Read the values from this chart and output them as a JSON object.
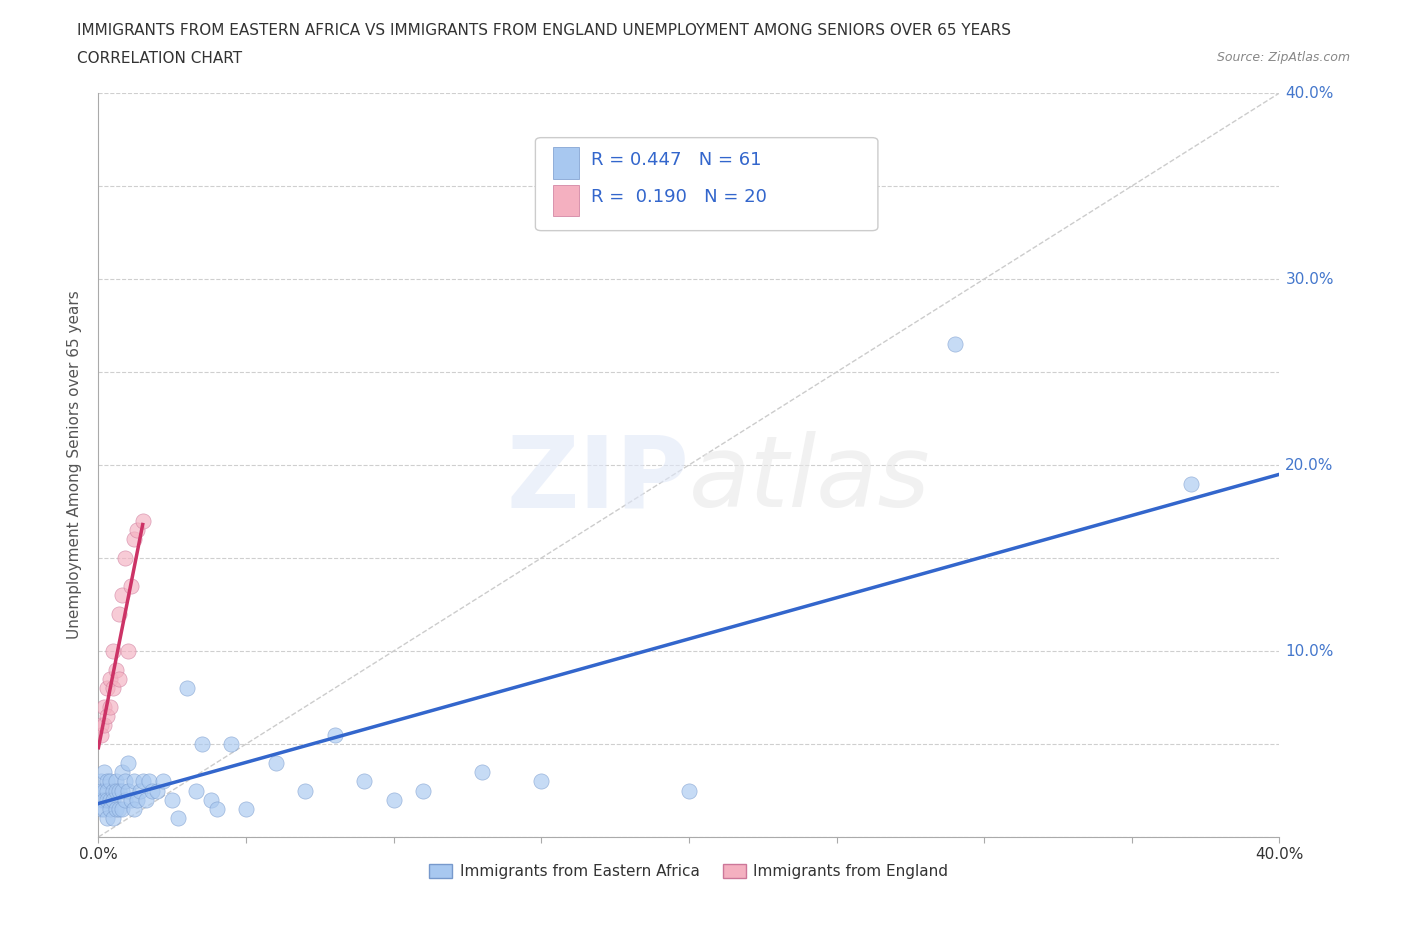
{
  "title_line1": "IMMIGRANTS FROM EASTERN AFRICA VS IMMIGRANTS FROM ENGLAND UNEMPLOYMENT AMONG SENIORS OVER 65 YEARS",
  "title_line2": "CORRELATION CHART",
  "source": "Source: ZipAtlas.com",
  "ylabel": "Unemployment Among Seniors over 65 years",
  "xlim": [
    0.0,
    0.4
  ],
  "ylim": [
    0.0,
    0.4
  ],
  "xticks": [
    0.0,
    0.05,
    0.1,
    0.15,
    0.2,
    0.25,
    0.3,
    0.35,
    0.4
  ],
  "yticks": [
    0.0,
    0.05,
    0.1,
    0.15,
    0.2,
    0.25,
    0.3,
    0.35,
    0.4
  ],
  "color_eastern_africa": "#a8c8f0",
  "color_england": "#f4b0c0",
  "line_color_eastern_africa": "#3366cc",
  "line_color_england": "#cc3366",
  "diag_line_color": "#cccccc",
  "R_eastern_africa": 0.447,
  "N_eastern_africa": 61,
  "R_england": 0.19,
  "N_england": 20,
  "legend_label_eastern_africa": "Immigrants from Eastern Africa",
  "legend_label_england": "Immigrants from England",
  "watermark_zip": "ZIP",
  "watermark_atlas": "atlas",
  "background_color": "#ffffff",
  "grid_color": "#bbbbbb",
  "right_tick_color": "#4477cc",
  "scatter_alpha": 0.65,
  "scatter_size": 120,
  "eastern_africa_x": [
    0.001,
    0.001,
    0.001,
    0.001,
    0.002,
    0.002,
    0.002,
    0.002,
    0.003,
    0.003,
    0.003,
    0.003,
    0.004,
    0.004,
    0.004,
    0.005,
    0.005,
    0.005,
    0.006,
    0.006,
    0.006,
    0.007,
    0.007,
    0.008,
    0.008,
    0.008,
    0.009,
    0.009,
    0.01,
    0.01,
    0.011,
    0.012,
    0.012,
    0.013,
    0.014,
    0.015,
    0.016,
    0.017,
    0.018,
    0.02,
    0.022,
    0.025,
    0.027,
    0.03,
    0.033,
    0.035,
    0.038,
    0.04,
    0.045,
    0.05,
    0.06,
    0.07,
    0.08,
    0.09,
    0.1,
    0.11,
    0.13,
    0.15,
    0.2,
    0.29,
    0.37
  ],
  "eastern_africa_y": [
    0.03,
    0.025,
    0.02,
    0.015,
    0.035,
    0.025,
    0.02,
    0.015,
    0.03,
    0.025,
    0.02,
    0.01,
    0.03,
    0.02,
    0.015,
    0.025,
    0.02,
    0.01,
    0.03,
    0.025,
    0.015,
    0.025,
    0.015,
    0.035,
    0.025,
    0.015,
    0.03,
    0.02,
    0.04,
    0.025,
    0.02,
    0.03,
    0.015,
    0.02,
    0.025,
    0.03,
    0.02,
    0.03,
    0.025,
    0.025,
    0.03,
    0.02,
    0.01,
    0.08,
    0.025,
    0.05,
    0.02,
    0.015,
    0.05,
    0.015,
    0.04,
    0.025,
    0.055,
    0.03,
    0.02,
    0.025,
    0.035,
    0.03,
    0.025,
    0.265,
    0.19
  ],
  "england_x": [
    0.001,
    0.001,
    0.002,
    0.002,
    0.003,
    0.003,
    0.004,
    0.004,
    0.005,
    0.005,
    0.006,
    0.007,
    0.007,
    0.008,
    0.009,
    0.01,
    0.011,
    0.012,
    0.013,
    0.015
  ],
  "england_y": [
    0.06,
    0.055,
    0.07,
    0.06,
    0.08,
    0.065,
    0.085,
    0.07,
    0.1,
    0.08,
    0.09,
    0.12,
    0.085,
    0.13,
    0.15,
    0.1,
    0.135,
    0.16,
    0.165,
    0.17
  ],
  "ea_line_x0": 0.0,
  "ea_line_x1": 0.4,
  "ea_line_y0": 0.018,
  "ea_line_y1": 0.195,
  "en_line_x0": 0.0,
  "en_line_x1": 0.015,
  "en_line_y0": 0.048,
  "en_line_y1": 0.168
}
